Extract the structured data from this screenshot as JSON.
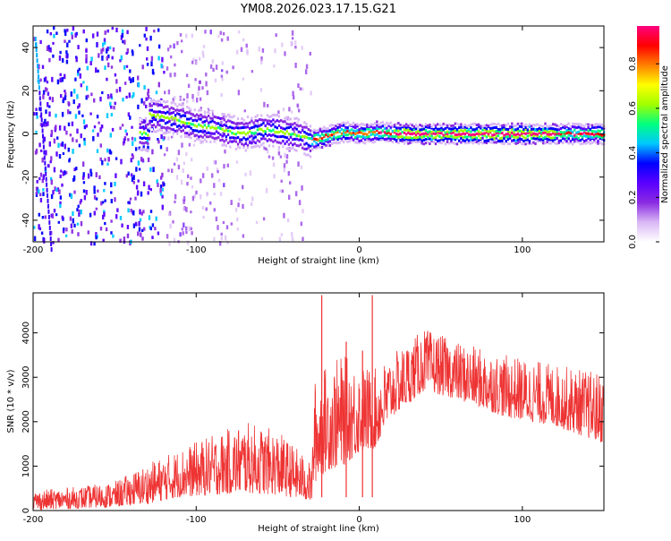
{
  "title": "YM08.2026.023.17.15.G21",
  "chart_data": [
    {
      "type": "heatmap",
      "xlabel": "Height of straight line (km)",
      "ylabel": "Frequency (Hz)",
      "xlim": [
        -200,
        150
      ],
      "ylim": [
        -50,
        50
      ],
      "xticks": [
        "-200",
        "-100",
        "0",
        "100"
      ],
      "yticks": [
        "-40",
        "-20",
        "0",
        "20",
        "40"
      ],
      "colorbar": {
        "label": "Normalized spectral amplitude",
        "range": [
          0,
          0.97
        ],
        "ticks": [
          "0.0",
          "0.2",
          "0.4",
          "0.6",
          "0.8"
        ],
        "colormap": [
          "#ffffff",
          "#d9b8f5",
          "#8a2be2",
          "#5a00ff",
          "#0000ff",
          "#00c8ff",
          "#00ff80",
          "#a0ff00",
          "#ffff00",
          "#ff8000",
          "#ff0000",
          "#ff0080"
        ]
      },
      "ridge": [
        {
          "x": -130,
          "y": 9
        },
        {
          "x": -120,
          "y": 8
        },
        {
          "x": -110,
          "y": 6
        },
        {
          "x": -100,
          "y": 4
        },
        {
          "x": -90,
          "y": 3
        },
        {
          "x": -80,
          "y": 1
        },
        {
          "x": -70,
          "y": 0
        },
        {
          "x": -60,
          "y": 2
        },
        {
          "x": -50,
          "y": 1
        },
        {
          "x": -40,
          "y": 0
        },
        {
          "x": -30,
          "y": -3
        },
        {
          "x": -20,
          "y": -1
        },
        {
          "x": -10,
          "y": 1
        },
        {
          "x": 0,
          "y": 0
        },
        {
          "x": 10,
          "y": 1
        },
        {
          "x": 30,
          "y": 0
        },
        {
          "x": 60,
          "y": 0
        },
        {
          "x": 90,
          "y": 0
        },
        {
          "x": 120,
          "y": 0
        },
        {
          "x": 150,
          "y": 0
        }
      ]
    },
    {
      "type": "line",
      "xlabel": "Height of straight line (km)",
      "ylabel": "SNR (10 * v/v)",
      "xlim": [
        -200,
        150
      ],
      "ylim": [
        0,
        4900
      ],
      "xticks": [
        "-200",
        "-100",
        "0",
        "100"
      ],
      "yticks": [
        "0",
        "1000",
        "2000",
        "3000",
        "4000"
      ],
      "color": "#ee3333",
      "envelope": [
        {
          "x": -200,
          "low": 20,
          "high": 450
        },
        {
          "x": -170,
          "low": 50,
          "high": 550
        },
        {
          "x": -150,
          "low": 80,
          "high": 650
        },
        {
          "x": -130,
          "low": 150,
          "high": 1050
        },
        {
          "x": -110,
          "low": 300,
          "high": 1400
        },
        {
          "x": -90,
          "low": 350,
          "high": 1700
        },
        {
          "x": -70,
          "low": 400,
          "high": 2000
        },
        {
          "x": -50,
          "low": 350,
          "high": 1800
        },
        {
          "x": -35,
          "low": 250,
          "high": 1300
        },
        {
          "x": -29,
          "low": 200,
          "high": 1000
        },
        {
          "x": -28,
          "low": 600,
          "high": 2900
        },
        {
          "x": -20,
          "low": 900,
          "high": 3300
        },
        {
          "x": -10,
          "low": 1000,
          "high": 3500
        },
        {
          "x": 0,
          "low": 1300,
          "high": 3300
        },
        {
          "x": 10,
          "low": 1400,
          "high": 3200
        },
        {
          "x": 20,
          "low": 2100,
          "high": 3500
        },
        {
          "x": 40,
          "low": 2700,
          "high": 4100
        },
        {
          "x": 60,
          "low": 2500,
          "high": 3800
        },
        {
          "x": 90,
          "low": 2100,
          "high": 3500
        },
        {
          "x": 120,
          "low": 1900,
          "high": 3300
        },
        {
          "x": 150,
          "low": 1500,
          "high": 3100
        }
      ],
      "spikes": [
        {
          "x": -23,
          "value": 4850
        },
        {
          "x": 8,
          "value": 4850
        },
        {
          "x": -8,
          "value": 3800
        },
        {
          "x": 2,
          "value": 3600
        }
      ]
    }
  ]
}
